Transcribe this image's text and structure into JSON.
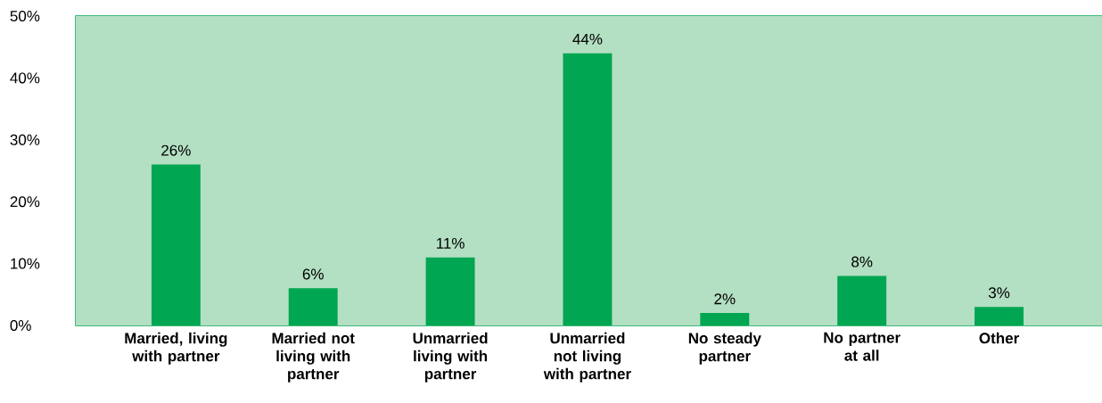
{
  "chart_data": {
    "type": "bar",
    "categories": [
      "Married, living with partner",
      "Married not living with partner",
      "Unmarried living with partner",
      "Unmarried not living with partner",
      "No steady partner",
      "No partner at all",
      "Other"
    ],
    "values": [
      26,
      6,
      11,
      44,
      2,
      8,
      3
    ],
    "value_labels": [
      "26%",
      "6%",
      "11%",
      "44%",
      "2%",
      "8%",
      "3%"
    ],
    "color": "#00a651",
    "ylim": [
      0,
      50
    ],
    "yticks": [
      {
        "value": 0,
        "label": "0%"
      },
      {
        "value": 10,
        "label": "10%"
      },
      {
        "value": 20,
        "label": "20%"
      },
      {
        "value": 30,
        "label": "30%"
      },
      {
        "value": 40,
        "label": "40%"
      },
      {
        "value": 50,
        "label": "50%"
      }
    ]
  }
}
